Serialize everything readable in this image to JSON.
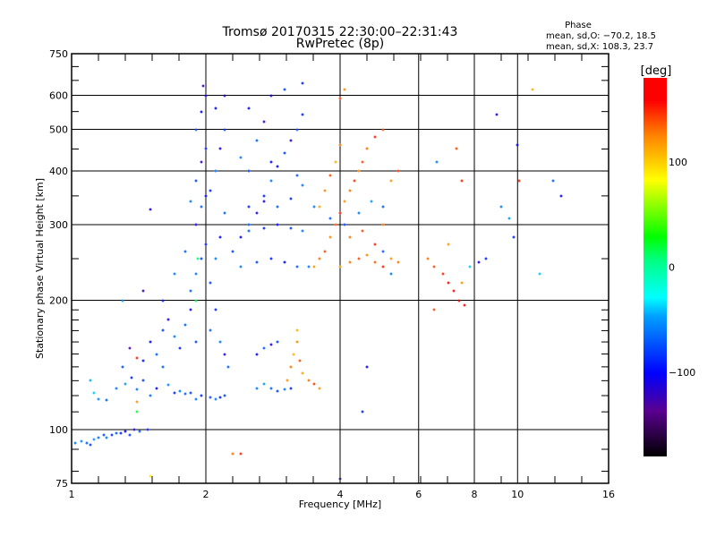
{
  "chart_data": {
    "type": "scatter",
    "title": "Tromsø 20170315 22:30:00–22:31:43",
    "subtitle": "RwPretec (8p)",
    "xlabel": "Frequency [MHz]",
    "ylabel": "Stationary phase Virtual Height [km]",
    "xscale": "log",
    "yscale": "log",
    "xlim": [
      1,
      16
    ],
    "ylim": [
      75,
      750
    ],
    "x_ticks": [
      1,
      2,
      4,
      6,
      8,
      10,
      16
    ],
    "x_tick_labels": [
      "1",
      "2",
      "4",
      "6",
      "8",
      "10",
      "16"
    ],
    "y_ticks": [
      75,
      100,
      200,
      300,
      400,
      500,
      600,
      750
    ],
    "y_tick_labels": [
      "75",
      "100",
      "200",
      "300",
      "400",
      "500",
      "600",
      "750"
    ],
    "x_grid": [
      2,
      4,
      6,
      8,
      10
    ],
    "y_grid": [
      100,
      200,
      300,
      400,
      500,
      600
    ],
    "info": {
      "heading": "Phase",
      "line_o": "mean, sd,O: −70.2, 18.5",
      "line_x": "mean, sd,X: 108.3, 23.7"
    },
    "colorbar": {
      "label": "[deg]",
      "range": [
        -180,
        180
      ],
      "ticks": [
        100,
        0,
        -100
      ],
      "tick_labels": [
        "100",
        "0",
        "−100"
      ]
    },
    "point_format": [
      "frequency_MHz",
      "virtual_height_km",
      "phase_deg"
    ],
    "points": [
      [
        1.02,
        93,
        -60
      ],
      [
        1.05,
        94,
        -55
      ],
      [
        1.08,
        93,
        -70
      ],
      [
        1.1,
        92,
        -80
      ],
      [
        1.12,
        95,
        -50
      ],
      [
        1.15,
        96,
        -65
      ],
      [
        1.18,
        97,
        -75
      ],
      [
        1.2,
        96,
        -60
      ],
      [
        1.23,
        97,
        -85
      ],
      [
        1.26,
        98,
        -70
      ],
      [
        1.29,
        98,
        -90
      ],
      [
        1.32,
        99,
        -100
      ],
      [
        1.35,
        97,
        -80
      ],
      [
        1.38,
        100,
        -110
      ],
      [
        1.42,
        99,
        -70
      ],
      [
        1.48,
        100,
        -90
      ],
      [
        1.1,
        130,
        -45
      ],
      [
        1.12,
        122,
        -40
      ],
      [
        1.15,
        118,
        -55
      ],
      [
        1.2,
        117,
        -70
      ],
      [
        1.26,
        125,
        -60
      ],
      [
        1.3,
        140,
        -75
      ],
      [
        1.32,
        128,
        -50
      ],
      [
        1.36,
        132,
        -90
      ],
      [
        1.4,
        124,
        -60
      ],
      [
        1.45,
        130,
        -80
      ],
      [
        1.5,
        120,
        -65
      ],
      [
        1.55,
        125,
        -100
      ],
      [
        1.6,
        140,
        -70
      ],
      [
        1.65,
        127,
        -55
      ],
      [
        1.7,
        122,
        -90
      ],
      [
        1.75,
        123,
        -60
      ],
      [
        1.8,
        121,
        -70
      ],
      [
        1.85,
        122,
        -80
      ],
      [
        1.9,
        118,
        -60
      ],
      [
        1.95,
        120,
        -90
      ],
      [
        2.05,
        119,
        -75
      ],
      [
        2.1,
        118,
        -60
      ],
      [
        2.15,
        119,
        -90
      ],
      [
        2.2,
        120,
        -80
      ],
      [
        1.45,
        145,
        -95
      ],
      [
        1.5,
        160,
        -100
      ],
      [
        1.55,
        150,
        -70
      ],
      [
        1.6,
        170,
        -80
      ],
      [
        1.65,
        180,
        -110
      ],
      [
        1.7,
        165,
        -60
      ],
      [
        1.75,
        155,
        -90
      ],
      [
        1.8,
        175,
        -70
      ],
      [
        1.85,
        190,
        -100
      ],
      [
        1.9,
        160,
        -80
      ],
      [
        1.6,
        200,
        -90
      ],
      [
        1.7,
        230,
        -60
      ],
      [
        1.8,
        260,
        -70
      ],
      [
        1.45,
        210,
        -120
      ],
      [
        1.5,
        325,
        -110
      ],
      [
        1.3,
        200,
        -50
      ],
      [
        1.35,
        155,
        -130
      ],
      [
        1.4,
        147,
        150
      ],
      [
        1.4,
        116,
        120
      ],
      [
        1.4,
        110,
        20
      ],
      [
        1.5,
        78,
        90
      ],
      [
        1.85,
        210,
        -70
      ],
      [
        1.9,
        230,
        -60
      ],
      [
        1.95,
        250,
        -80
      ],
      [
        2.0,
        270,
        -90
      ],
      [
        1.9,
        300,
        -110
      ],
      [
        1.95,
        330,
        -70
      ],
      [
        2.0,
        350,
        -100
      ],
      [
        1.85,
        340,
        -60
      ],
      [
        1.9,
        380,
        -80
      ],
      [
        1.95,
        420,
        -120
      ],
      [
        2.0,
        450,
        -90
      ],
      [
        1.9,
        500,
        -70
      ],
      [
        1.95,
        550,
        -100
      ],
      [
        2.0,
        600,
        -110
      ],
      [
        1.97,
        630,
        -120
      ],
      [
        1.9,
        200,
        20
      ],
      [
        1.92,
        250,
        10
      ],
      [
        2.05,
        220,
        -80
      ],
      [
        2.1,
        250,
        -60
      ],
      [
        2.15,
        280,
        -100
      ],
      [
        2.2,
        320,
        -70
      ],
      [
        2.05,
        360,
        -90
      ],
      [
        2.1,
        400,
        -60
      ],
      [
        2.15,
        450,
        -110
      ],
      [
        2.2,
        500,
        -80
      ],
      [
        2.1,
        560,
        -100
      ],
      [
        2.2,
        600,
        -120
      ],
      [
        2.05,
        170,
        -70
      ],
      [
        2.1,
        190,
        -90
      ],
      [
        2.15,
        160,
        -60
      ],
      [
        2.2,
        150,
        -110
      ],
      [
        2.25,
        140,
        -70
      ],
      [
        2.3,
        260,
        -80
      ],
      [
        2.4,
        280,
        -100
      ],
      [
        2.5,
        300,
        -70
      ],
      [
        2.6,
        320,
        -110
      ],
      [
        2.7,
        350,
        -90
      ],
      [
        2.8,
        380,
        -60
      ],
      [
        2.9,
        410,
        -100
      ],
      [
        3.0,
        440,
        -80
      ],
      [
        3.1,
        470,
        -120
      ],
      [
        3.2,
        500,
        -70
      ],
      [
        3.3,
        540,
        -90
      ],
      [
        2.5,
        560,
        -100
      ],
      [
        2.8,
        600,
        -110
      ],
      [
        3.0,
        620,
        -80
      ],
      [
        3.3,
        640,
        -90
      ],
      [
        2.4,
        430,
        -60
      ],
      [
        2.6,
        470,
        -70
      ],
      [
        2.7,
        520,
        -120
      ],
      [
        2.4,
        240,
        -60
      ],
      [
        2.6,
        245,
        -80
      ],
      [
        2.8,
        250,
        -90
      ],
      [
        3.0,
        245,
        -100
      ],
      [
        3.2,
        240,
        -70
      ],
      [
        3.4,
        240,
        -60
      ],
      [
        2.5,
        290,
        -70
      ],
      [
        2.7,
        295,
        -90
      ],
      [
        2.9,
        300,
        -100
      ],
      [
        3.1,
        295,
        -80
      ],
      [
        3.3,
        290,
        -60
      ],
      [
        2.5,
        330,
        -90
      ],
      [
        2.7,
        340,
        -110
      ],
      [
        2.9,
        330,
        -70
      ],
      [
        3.1,
        345,
        -90
      ],
      [
        3.3,
        370,
        -60
      ],
      [
        2.5,
        400,
        -80
      ],
      [
        2.8,
        420,
        -100
      ],
      [
        3.2,
        390,
        -70
      ],
      [
        2.6,
        125,
        -60
      ],
      [
        2.7,
        128,
        -50
      ],
      [
        2.8,
        125,
        -70
      ],
      [
        2.9,
        123,
        -80
      ],
      [
        3.0,
        124,
        -60
      ],
      [
        3.1,
        125,
        -90
      ],
      [
        2.6,
        150,
        -100
      ],
      [
        2.7,
        155,
        -70
      ],
      [
        2.8,
        158,
        -110
      ],
      [
        2.9,
        160,
        -80
      ],
      [
        2.3,
        88,
        130
      ],
      [
        2.4,
        88,
        150
      ],
      [
        3.05,
        130,
        120
      ],
      [
        3.1,
        140,
        130
      ],
      [
        3.15,
        150,
        110
      ],
      [
        3.2,
        160,
        125
      ],
      [
        3.25,
        145,
        140
      ],
      [
        3.3,
        135,
        115
      ],
      [
        3.4,
        130,
        130
      ],
      [
        3.5,
        128,
        145
      ],
      [
        3.6,
        125,
        120
      ],
      [
        3.2,
        170,
        110
      ],
      [
        3.5,
        240,
        120
      ],
      [
        3.6,
        250,
        130
      ],
      [
        3.7,
        260,
        140
      ],
      [
        3.8,
        280,
        125
      ],
      [
        3.9,
        300,
        135
      ],
      [
        4.0,
        320,
        150
      ],
      [
        4.1,
        340,
        120
      ],
      [
        4.2,
        360,
        130
      ],
      [
        4.3,
        380,
        145
      ],
      [
        4.4,
        400,
        125
      ],
      [
        4.5,
        420,
        140
      ],
      [
        4.6,
        450,
        130
      ],
      [
        4.8,
        480,
        150
      ],
      [
        5.0,
        500,
        135
      ],
      [
        3.6,
        330,
        115
      ],
      [
        3.7,
        360,
        125
      ],
      [
        3.8,
        390,
        140
      ],
      [
        3.9,
        420,
        110
      ],
      [
        4.0,
        460,
        130
      ],
      [
        4.0,
        590,
        140
      ],
      [
        4.1,
        620,
        125
      ],
      [
        4.0,
        240,
        120
      ],
      [
        4.2,
        245,
        130
      ],
      [
        4.4,
        250,
        140
      ],
      [
        4.6,
        255,
        125
      ],
      [
        4.8,
        245,
        135
      ],
      [
        5.0,
        240,
        150
      ],
      [
        5.2,
        250,
        120
      ],
      [
        4.2,
        280,
        130
      ],
      [
        4.5,
        290,
        140
      ],
      [
        4.8,
        270,
        150
      ],
      [
        5.0,
        300,
        130
      ],
      [
        5.2,
        380,
        120
      ],
      [
        5.4,
        400,
        145
      ],
      [
        5.0,
        260,
        -70
      ],
      [
        5.2,
        230,
        -60
      ],
      [
        5.4,
        245,
        130
      ],
      [
        3.5,
        330,
        -60
      ],
      [
        3.8,
        310,
        -70
      ],
      [
        4.1,
        300,
        -80
      ],
      [
        4.4,
        320,
        -60
      ],
      [
        4.7,
        340,
        -50
      ],
      [
        5.0,
        330,
        -70
      ],
      [
        4.5,
        110,
        -90
      ],
      [
        4.6,
        140,
        -100
      ],
      [
        4.0,
        77,
        -120
      ],
      [
        6.3,
        250,
        130
      ],
      [
        6.5,
        240,
        140
      ],
      [
        6.8,
        230,
        150
      ],
      [
        7.0,
        220,
        160
      ],
      [
        7.2,
        210,
        170
      ],
      [
        7.4,
        200,
        175
      ],
      [
        7.6,
        195,
        165
      ],
      [
        7.5,
        220,
        120
      ],
      [
        7.8,
        240,
        -40
      ],
      [
        8.2,
        245,
        -110
      ],
      [
        8.5,
        250,
        -90
      ],
      [
        6.5,
        190,
        140
      ],
      [
        7.0,
        270,
        120
      ],
      [
        7.3,
        450,
        140
      ],
      [
        7.5,
        380,
        150
      ],
      [
        6.6,
        420,
        -60
      ],
      [
        9.0,
        540,
        -110
      ],
      [
        9.2,
        330,
        -60
      ],
      [
        9.6,
        310,
        -50
      ],
      [
        9.8,
        280,
        -90
      ],
      [
        10.0,
        460,
        -100
      ],
      [
        10.1,
        380,
        150
      ],
      [
        10.8,
        620,
        110
      ],
      [
        11.2,
        230,
        -40
      ],
      [
        12.0,
        380,
        -70
      ],
      [
        12.5,
        350,
        -100
      ]
    ]
  }
}
